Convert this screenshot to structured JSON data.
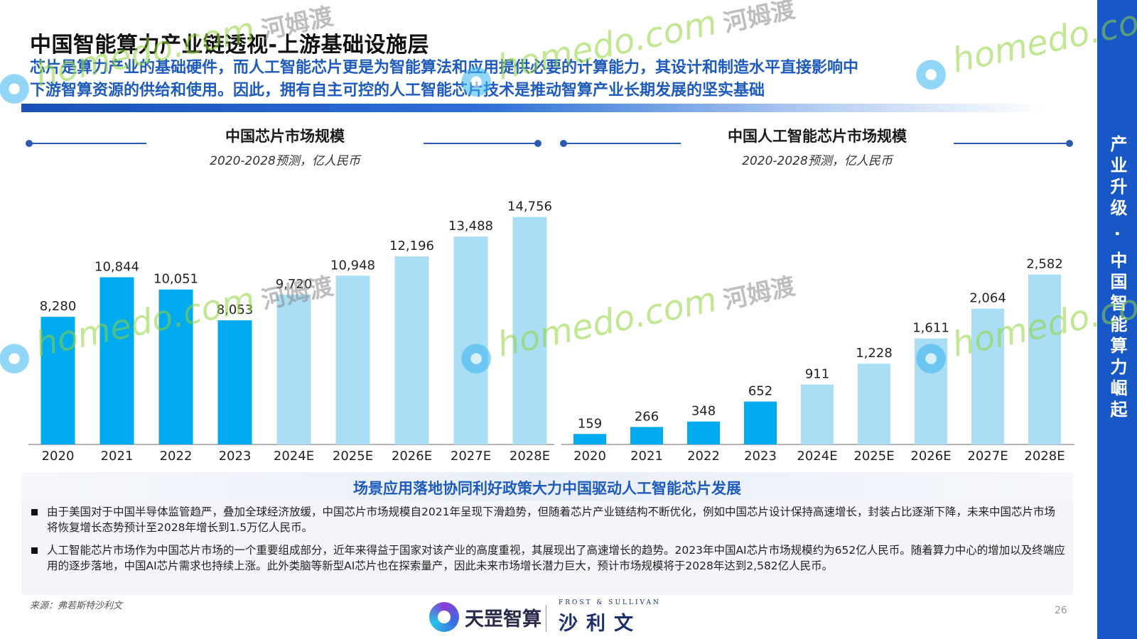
{
  "title": "中国智能算力产业链透视-上游基础设施层",
  "subtitle_line1": "芯片是算力产业的基础硬件，而人工智能芯片更是为智能算法和应用提供必要的计算能力，其设计和制造水平直接影响中",
  "subtitle_line2": "下游智算资源的供给和使用。因此，拥有自主可控的人工智能芯片技术是推动智算产业长期发展的坚实基础",
  "side_label": "产业升级 · 中国智能算力崛起",
  "colors": {
    "actual": "#00aaee",
    "forecast": "#a9def4",
    "accent": "#1e5bbd",
    "band": "#1858c6"
  },
  "chart_data": [
    {
      "type": "bar",
      "title": "中国芯片市场规模",
      "subtitle": "2020-2028预测，亿人民币",
      "categories": [
        "2020",
        "2021",
        "2022",
        "2023",
        "2024E",
        "2025E",
        "2026E",
        "2027E",
        "2028E"
      ],
      "values": [
        8280,
        10844,
        10051,
        8053,
        9720,
        10948,
        12196,
        13488,
        14756
      ],
      "value_labels": [
        "8,280",
        "10,844",
        "10,051",
        "8,053",
        "9,720",
        "10,948",
        "12,196",
        "13,488",
        "14,756"
      ],
      "forecast_from_index": 4,
      "ylim": [
        0,
        17500
      ]
    },
    {
      "type": "bar",
      "title": "中国人工智能芯片市场规模",
      "subtitle": "2020-2028预测，亿人民币",
      "categories": [
        "2020",
        "2021",
        "2022",
        "2023",
        "2024E",
        "2025E",
        "2026E",
        "2027E",
        "2028E"
      ],
      "values": [
        159,
        266,
        348,
        652,
        911,
        1228,
        1611,
        2064,
        2582
      ],
      "value_labels": [
        "159",
        "266",
        "348",
        "652",
        "911",
        "1,228",
        "1,611",
        "2,064",
        "2,582"
      ],
      "forecast_from_index": 4,
      "ylim": [
        0,
        4100
      ]
    }
  ],
  "summary": {
    "heading": "场景应用落地协同利好政策大力中国驱动人工智能芯片发展",
    "bullets": [
      "由于美国对于中国半导体监管趋严，叠加全球经济放缓，中国芯片市场规模自2021年呈现下滑趋势，但随着芯片产业链结构不断优化，例如中国芯片设计保持高速增长，封装占比逐渐下降，未来中国芯片市场将恢复增长态势预计至2028年增长到1.5万亿人民币。",
      "人工智能芯片市场作为中国芯片市场的一个重要组成部分，近年来得益于国家对该产业的高度重视，其展现出了高速增长的趋势。2023年中国AI芯片市场规模约为652亿人民币。随着算力中心的增加以及终端应用的逐步落地，中国AI芯片需求也持续上涨。此外类脑等新型AI芯片也在探索量产，因此未来市场增长潜力巨大，预计市场规模将于2028年达到2,582亿人民币。"
    ]
  },
  "source": "来源：弗若斯特沙利文",
  "page_number": "26",
  "logos": {
    "left_text": "天罡智算",
    "right_top": "FROST & SULLIVAN",
    "right_main": "沙利文"
  },
  "watermark": {
    "en": "homedo.com",
    "cn": "河姆渡"
  }
}
